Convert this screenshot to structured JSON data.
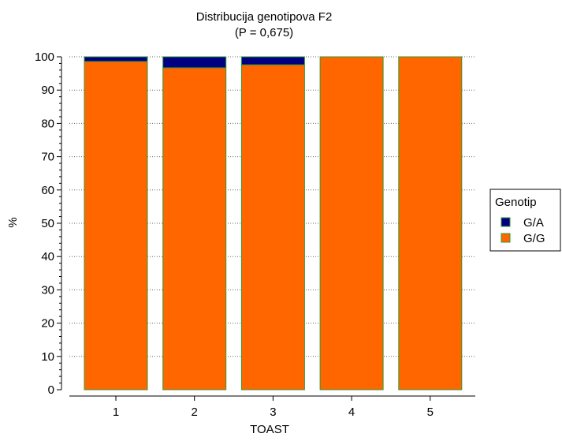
{
  "chart_data": {
    "type": "bar",
    "stacked": true,
    "title": "Distribucija genotipova F2",
    "subtitle": "(P = 0,675)",
    "xlabel": "TOAST",
    "ylabel": "%",
    "categories": [
      "1",
      "2",
      "3",
      "4",
      "5"
    ],
    "ylim": [
      0,
      100
    ],
    "yticks": [
      0,
      10,
      20,
      30,
      40,
      50,
      60,
      70,
      80,
      90,
      100
    ],
    "grid": true,
    "legend": {
      "title": "Genotip",
      "placement": "right",
      "entries": [
        "G/A",
        "G/G"
      ]
    },
    "series": [
      {
        "name": "G/G",
        "color": "#FF6600",
        "values": [
          98.6,
          96.7,
          97.6,
          100,
          100
        ]
      },
      {
        "name": "G/A",
        "color": "#000080",
        "values": [
          1.4,
          3.3,
          2.4,
          0,
          0
        ]
      }
    ],
    "bar_edge_color": "#339933"
  }
}
